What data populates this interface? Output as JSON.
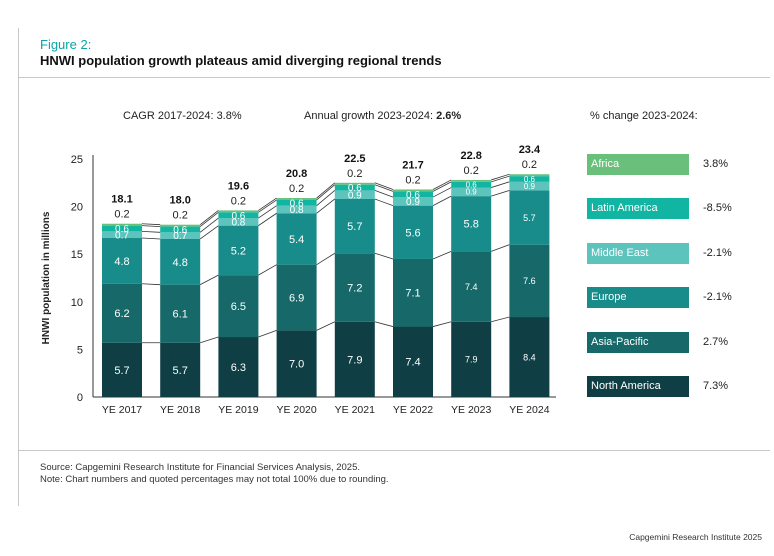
{
  "figure_label": "Figure 2:",
  "figure_title": "HNWI population growth plateaus amid diverging regional trends",
  "cagr_label": "CAGR 2017-2024:",
  "cagr_value": "3.8%",
  "annual_label": "Annual growth 2023-2024:",
  "annual_value": "2.6%",
  "pct_change_label": "% change 2023-2024:",
  "legend": [
    {
      "name": "Africa",
      "pct": "3.8%",
      "color": "#6abf7b"
    },
    {
      "name": "Latin America",
      "pct": "-8.5%",
      "color": "#12b5a1"
    },
    {
      "name": "Middle East",
      "pct": "-2.1%",
      "color": "#5cc3bd"
    },
    {
      "name": "Europe",
      "pct": "-2.1%",
      "color": "#178c8a"
    },
    {
      "name": "Asia-Pacific",
      "pct": "2.7%",
      "color": "#166869"
    },
    {
      "name": "North America",
      "pct": "7.3%",
      "color": "#0f3f45"
    }
  ],
  "source_line1": "Source: Capgemini Research Institute for Financial Services Analysis, 2025.",
  "source_line2": "Note: Chart numbers and quoted percentages may not total 100% due to rounding.",
  "footer": "Capgemini Research Institute 2025",
  "chart_data": {
    "type": "bar",
    "stacked": true,
    "ylabel": "HNWI population in millions",
    "ylim": [
      0,
      25
    ],
    "yticks": [
      0,
      5,
      10,
      15,
      20,
      25
    ],
    "categories": [
      "YE 2017",
      "YE 2018",
      "YE 2019",
      "YE 2020",
      "YE 2021",
      "YE 2022",
      "YE 2023",
      "YE 2024"
    ],
    "totals": [
      "18.1",
      "18.0",
      "19.6",
      "20.8",
      "22.5",
      "21.7",
      "22.8",
      "23.4"
    ],
    "series": [
      {
        "name": "North America",
        "values": [
          5.7,
          5.7,
          6.3,
          7.0,
          7.9,
          7.4,
          7.9,
          8.4
        ],
        "labels": [
          "5.7",
          "5.7",
          "6.3",
          "7.0",
          "7.9",
          "7.4",
          "7.9",
          "8.4"
        ]
      },
      {
        "name": "Asia-Pacific",
        "values": [
          6.2,
          6.1,
          6.5,
          6.9,
          7.2,
          7.1,
          7.4,
          7.6
        ],
        "labels": [
          "6.2",
          "6.1",
          "6.5",
          "6.9",
          "7.2",
          "7.1",
          "7.4",
          "7.6"
        ]
      },
      {
        "name": "Europe",
        "values": [
          4.8,
          4.8,
          5.2,
          5.4,
          5.7,
          5.6,
          5.8,
          5.7
        ],
        "labels": [
          "4.8",
          "4.8",
          "5.2",
          "5.4",
          "5.7",
          "5.6",
          "5.8",
          "5.7"
        ]
      },
      {
        "name": "Middle East",
        "values": [
          0.7,
          0.7,
          0.8,
          0.8,
          0.9,
          0.9,
          0.9,
          0.9
        ],
        "labels": [
          "0.7",
          "0.7",
          "0.8",
          "0.8",
          "0.9",
          "0.9",
          "0.9",
          "0.9"
        ]
      },
      {
        "name": "Latin America",
        "values": [
          0.6,
          0.6,
          0.6,
          0.6,
          0.6,
          0.6,
          0.6,
          0.6
        ],
        "labels": [
          "0.6",
          "0.6",
          "0.6",
          "0.6",
          "0.6",
          "0.6",
          "0.6",
          "0.6"
        ]
      },
      {
        "name": "Africa",
        "values": [
          0.2,
          0.2,
          0.2,
          0.2,
          0.2,
          0.2,
          0.2,
          0.2
        ],
        "labels": [
          "0.2",
          "0.2",
          "0.2",
          "0.2",
          "0.2",
          "0.2",
          "0.2",
          "0.2"
        ]
      }
    ]
  }
}
